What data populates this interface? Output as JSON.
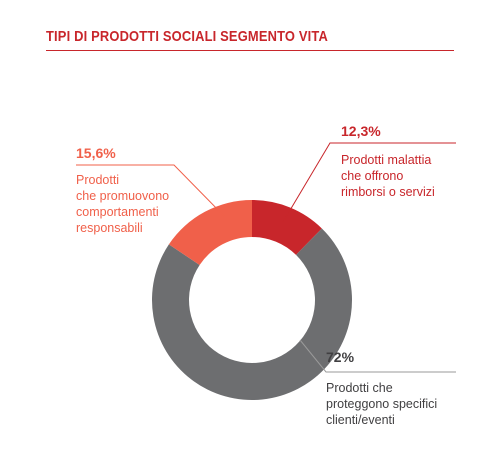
{
  "title": "TIPI DI PRODOTTI SOCIALI SEGMENTO VITA",
  "colors": {
    "accent": "#c8262b",
    "slice_malattia": "#c8262b",
    "slice_comportamenti": "#f0604a",
    "slice_clienti": "#6d6e70",
    "text_dark": "#414042"
  },
  "chart_data": {
    "type": "pie",
    "style": "donut",
    "title": "TIPI DI PRODOTTI SOCIALI SEGMENTO VITA",
    "slices": [
      {
        "label": "Prodotti malattia che offrono rimborsi o servizi",
        "value": 12.3,
        "display": "12,3%",
        "color": "#c8262b"
      },
      {
        "label": "Prodotti che proteggono specifici clienti/eventi",
        "value": 72,
        "display": "72%",
        "color": "#6d6e70"
      },
      {
        "label": "Prodotti che promuovono comportamenti responsabili",
        "value": 15.6,
        "display": "15,6%",
        "color": "#f0604a"
      }
    ]
  },
  "labels": {
    "malattia": {
      "pct": "12,3%",
      "lines": [
        "Prodotti malattia",
        "che offrono",
        "rimborsi o servizi"
      ]
    },
    "clienti": {
      "pct": "72%",
      "lines": [
        "Prodotti che",
        "proteggono specifici",
        "clienti/eventi"
      ]
    },
    "comportamenti": {
      "pct": "15,6%",
      "lines": [
        "Prodotti",
        "che promuovono",
        "comportamenti",
        "responsabili"
      ]
    }
  }
}
